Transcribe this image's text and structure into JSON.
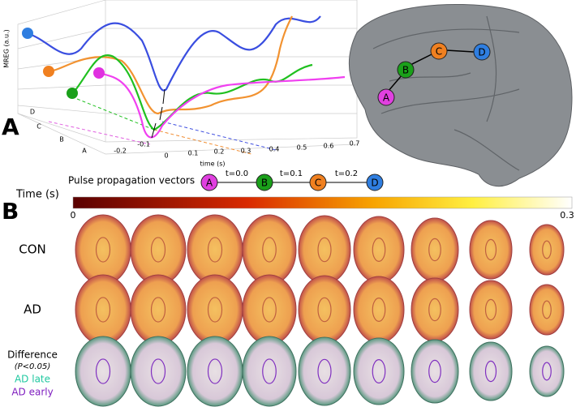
{
  "panel_a": {
    "label": "A",
    "plot": {
      "y_axis_label": "MREG (a.u.)",
      "x_axis_label": "time (s)",
      "x_ticks": [
        -0.2,
        -0.1,
        0,
        0.1,
        0.2,
        0.3,
        0.4,
        0.5,
        0.6,
        0.7
      ],
      "depth_ticks": [
        "A",
        "B",
        "C",
        "D"
      ]
    },
    "legend": {
      "title": "Pulse propagation vectors",
      "nodes": [
        "A",
        "B",
        "C",
        "D"
      ],
      "steps": [
        "t=0.0",
        "t=0.1",
        "t=0.2"
      ]
    },
    "brain_nodes": [
      "A",
      "B",
      "C",
      "D"
    ]
  },
  "panel_b": {
    "label": "B",
    "colorbar": {
      "title": "Time (s)",
      "min": 0,
      "max": 0.3
    },
    "rows": [
      "CON",
      "AD"
    ],
    "difference": {
      "title": "Difference",
      "note": "(P<0.05)",
      "late": "AD late",
      "early": "AD early"
    }
  }
}
